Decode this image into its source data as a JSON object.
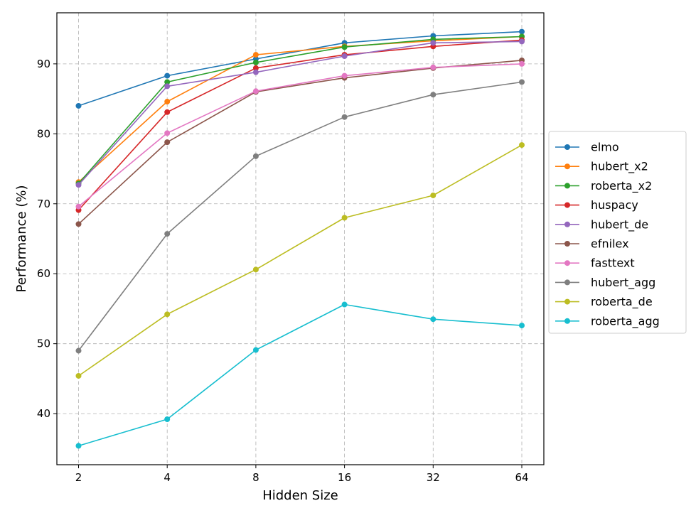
{
  "chart_data": {
    "type": "line",
    "title": "",
    "xlabel": "Hidden Size",
    "ylabel": "Performance (%)",
    "x": [
      2,
      4,
      8,
      16,
      32,
      64
    ],
    "x_tick_labels": [
      "2",
      "4",
      "8",
      "16",
      "32",
      "64"
    ],
    "x_scale": "log2",
    "y_ticks": [
      40,
      50,
      60,
      70,
      80,
      90
    ],
    "y_tick_labels": [
      "40",
      "50",
      "60",
      "70",
      "80",
      "90"
    ],
    "ylim": [
      32.7,
      97.3
    ],
    "grid": true,
    "legend_position": "right",
    "series": [
      {
        "name": "elmo",
        "color": "#1f77b4",
        "values": [
          84.0,
          88.3,
          90.7,
          93.0,
          94.0,
          94.6
        ]
      },
      {
        "name": "hubert_x2",
        "color": "#ff7f0e",
        "values": [
          73.1,
          84.6,
          91.3,
          92.5,
          93.3,
          93.9
        ]
      },
      {
        "name": "roberta_x2",
        "color": "#2ca02c",
        "values": [
          72.9,
          87.4,
          90.2,
          92.4,
          93.5,
          93.9
        ]
      },
      {
        "name": "huspacy",
        "color": "#d62728",
        "values": [
          69.1,
          83.1,
          89.4,
          91.3,
          92.5,
          93.4
        ]
      },
      {
        "name": "hubert_de",
        "color": "#9467bd",
        "values": [
          72.7,
          86.8,
          88.8,
          91.1,
          93.0,
          93.2
        ]
      },
      {
        "name": "efnilex",
        "color": "#8c564b",
        "values": [
          67.1,
          78.8,
          86.0,
          88.0,
          89.4,
          90.5
        ]
      },
      {
        "name": "fasttext",
        "color": "#e377c2",
        "values": [
          69.6,
          80.1,
          86.1,
          88.3,
          89.5,
          90.0
        ]
      },
      {
        "name": "hubert_agg",
        "color": "#7f7f7f",
        "values": [
          49.0,
          65.7,
          76.8,
          82.4,
          85.6,
          87.4
        ]
      },
      {
        "name": "roberta_de",
        "color": "#bcbd22",
        "values": [
          45.4,
          54.2,
          60.6,
          68.0,
          71.2,
          78.4
        ]
      },
      {
        "name": "roberta_agg",
        "color": "#17becf",
        "values": [
          35.4,
          39.2,
          49.1,
          55.6,
          53.5,
          52.6
        ]
      }
    ]
  }
}
